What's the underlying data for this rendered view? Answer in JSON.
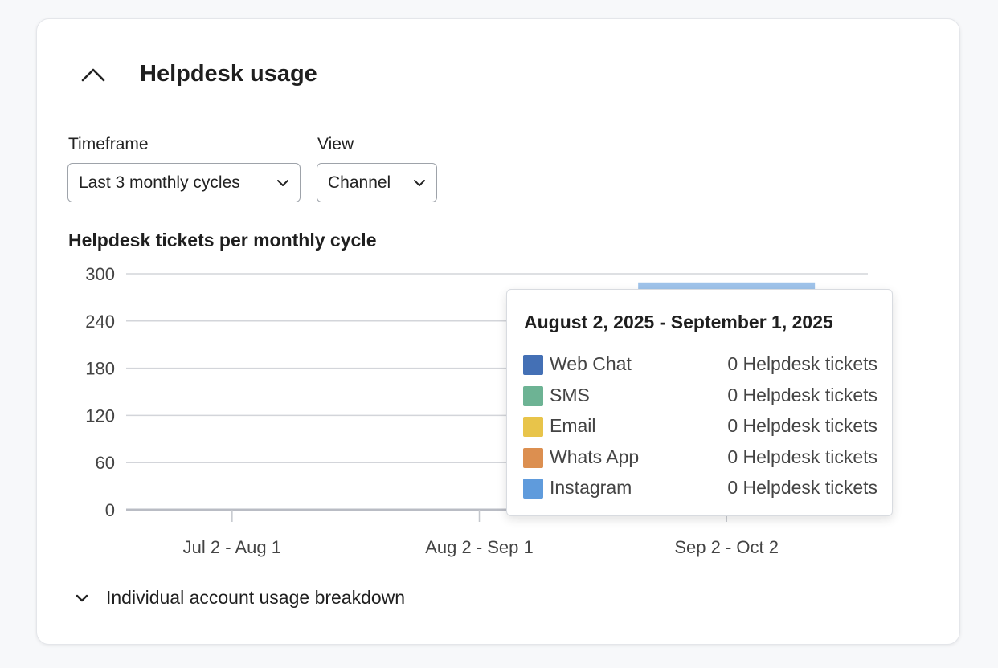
{
  "section": {
    "title": "Helpdesk usage",
    "collapse_icon": "chevron-up-icon"
  },
  "filters": {
    "timeframe": {
      "label": "Timeframe",
      "value": "Last 3 monthly cycles"
    },
    "view": {
      "label": "View",
      "value": "Channel"
    }
  },
  "chart_data": {
    "type": "bar",
    "stacked": true,
    "title": "Helpdesk tickets per monthly cycle",
    "categories": [
      "Jul 2 - Aug 1",
      "Aug 2 - Sep 1",
      "Sep 2 - Oct 2"
    ],
    "y_ticks": [
      "0",
      "60",
      "120",
      "180",
      "240",
      "300"
    ],
    "ylim": [
      0,
      300
    ],
    "grid": true,
    "series": [
      {
        "name": "Web Chat",
        "color": "#4470b5",
        "values": [
          0,
          0,
          0
        ]
      },
      {
        "name": "SMS",
        "color": "#6db394",
        "values": [
          0,
          0,
          0
        ]
      },
      {
        "name": "Email",
        "color": "#e8c44a",
        "values": [
          0,
          0,
          0
        ]
      },
      {
        "name": "Whats App",
        "color": "#dc8f50",
        "values": [
          0,
          0,
          0
        ]
      },
      {
        "name": "Instagram",
        "color": "#5f9bdc",
        "values": [
          0,
          0,
          289
        ]
      }
    ]
  },
  "tooltip": {
    "title": "August 2, 2025 - September 1, 2025",
    "rows": [
      {
        "name": "Web Chat",
        "value": "0 Helpdesk tickets",
        "color": "#4470b5"
      },
      {
        "name": "SMS",
        "value": "0 Helpdesk tickets",
        "color": "#6db394"
      },
      {
        "name": "Email",
        "value": "0 Helpdesk tickets",
        "color": "#e8c44a"
      },
      {
        "name": "Whats App",
        "value": "0 Helpdesk tickets",
        "color": "#dc8f50"
      },
      {
        "name": "Instagram",
        "value": "0 Helpdesk tickets",
        "color": "#5f9bdc"
      }
    ]
  },
  "breakdown": {
    "label": "Individual account usage breakdown",
    "icon": "chevron-down-icon"
  }
}
